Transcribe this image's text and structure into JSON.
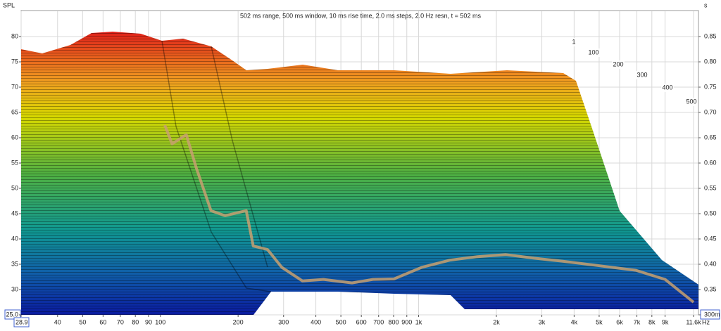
{
  "chart_data": {
    "type": "waterfall",
    "title": "502 ms range, 500 ms window, 10 ms rise time, 2.0 ms steps,  2.0 Hz resn, t = 502 ms",
    "ylabel": "SPL",
    "y2label": "s",
    "x_unit": "Hz",
    "xscale": "log",
    "grid": true,
    "xlim": [
      28.9,
      11600
    ],
    "xticks": [
      28.9,
      40,
      50,
      60,
      70,
      80,
      90,
      100,
      200,
      300,
      400,
      500,
      600,
      700,
      800,
      900,
      {
        "value": 1000,
        "label": "1k"
      },
      {
        "value": 2000,
        "label": "2k"
      },
      {
        "value": 3000,
        "label": "3k"
      },
      {
        "value": 4000,
        "label": "4k"
      },
      {
        "value": 5000,
        "label": "5k"
      },
      {
        "value": 6000,
        "label": "6k"
      },
      {
        "value": 7000,
        "label": "7k"
      },
      {
        "value": 8000,
        "label": "8k"
      },
      {
        "value": 9000,
        "label": "9k"
      },
      {
        "value": 11600,
        "label": "11.6k"
      }
    ],
    "ylim": [
      25,
      85
    ],
    "yticks": [
      {
        "value": 25,
        "label": "25.0"
      },
      30,
      35,
      40,
      45,
      50,
      55,
      60,
      65,
      70,
      75,
      80
    ],
    "y2lim": [
      0.3,
      0.9
    ],
    "y2ticks": [
      {
        "value": 0.3,
        "label": "300m"
      },
      0.35,
      {
        "value": 0.4,
        "label": "0.40"
      },
      0.45,
      {
        "value": 0.5,
        "label": "0.50"
      },
      0.55,
      {
        "value": 0.6,
        "label": "0.60"
      },
      0.65,
      {
        "value": 0.7,
        "label": "0.70"
      },
      0.75,
      {
        "value": 0.8,
        "label": "0.80"
      },
      0.85
    ],
    "time_labels": [
      "1",
      "100",
      "200",
      "300",
      "400",
      "500"
    ],
    "x": [
      104,
      111,
      126,
      138,
      157,
      178,
      215,
      229,
      260,
      295,
      355,
      428,
      552,
      665,
      803,
      1030,
      1320,
      1690,
      2180,
      2800,
      3620,
      5020,
      6940,
      9000,
      11600
    ],
    "series": [
      {
        "color": "#c8a070",
        "values": [
          62.5,
          58.8,
          60.6,
          53.9,
          45.6,
          44.6,
          45.6,
          38.6,
          37.9,
          34.4,
          31.7,
          32,
          31.3,
          32,
          32.1,
          34.4,
          35.8,
          36.5,
          36.9,
          36.2,
          35.6,
          34.7,
          33.8,
          32,
          27.5
        ]
      }
    ]
  }
}
